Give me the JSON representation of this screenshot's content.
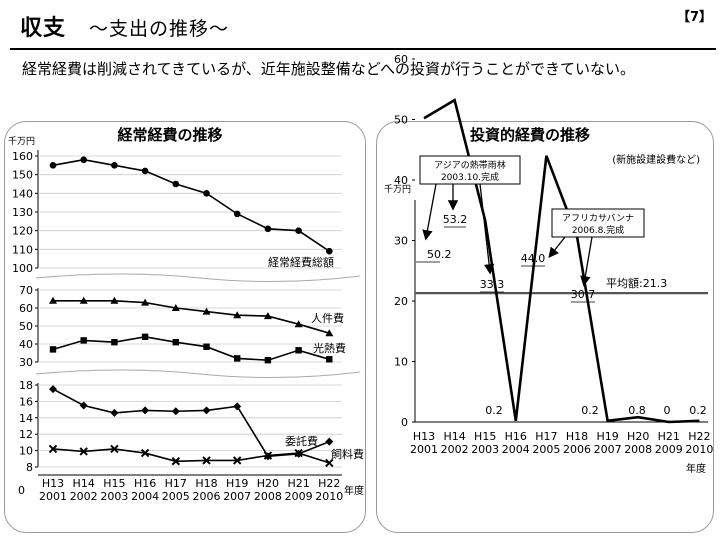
{
  "header": {
    "title_main": "収支",
    "title_sub": "～支出の推移～",
    "page_number": "【7】",
    "summary": "経常経費は削減されてきているが、近年施設整備などへの投資が行うことができていない。"
  },
  "chart_data": [
    {
      "type": "line",
      "title": "経常経費の推移",
      "ylabel": "千万円",
      "xlabel": "年度",
      "categories": [
        "H13",
        "H14",
        "H15",
        "H16",
        "H17",
        "H18",
        "H19",
        "H20",
        "H21",
        "H22"
      ],
      "category_years": [
        "2001",
        "2002",
        "2003",
        "2004",
        "2005",
        "2006",
        "2007",
        "2008",
        "2009",
        "2010"
      ],
      "panels": [
        {
          "ylim": [
            100,
            160
          ],
          "yticks": [
            100,
            110,
            120,
            130,
            140,
            150,
            160
          ],
          "series": [
            {
              "name": "経常経費総額",
              "marker": "circle",
              "values": [
                155,
                158,
                155,
                152,
                145,
                140,
                129,
                121,
                120,
                109
              ]
            }
          ]
        },
        {
          "ylim": [
            30,
            70
          ],
          "yticks": [
            30,
            40,
            50,
            60,
            70
          ],
          "series": [
            {
              "name": "人件費",
              "marker": "triangle",
              "values": [
                64,
                64,
                64,
                63,
                60,
                58,
                56,
                55.5,
                51,
                46
              ]
            },
            {
              "name": "光熱費",
              "marker": "square",
              "values": [
                37,
                42,
                41,
                44,
                41,
                38.5,
                32,
                31,
                36.5,
                31.5
              ]
            }
          ]
        },
        {
          "ylim": [
            8,
            18
          ],
          "yticks": [
            8,
            10,
            12,
            14,
            16,
            18
          ],
          "extra_tick": "0",
          "series": [
            {
              "name": "委託費",
              "marker": "diamond",
              "values": [
                17.5,
                15.5,
                14.6,
                14.9,
                14.8,
                14.9,
                15.4,
                9.3,
                9.6,
                11.1
              ]
            },
            {
              "name": "飼料費",
              "marker": "cross",
              "values": [
                10.2,
                9.9,
                10.2,
                9.7,
                8.7,
                8.8,
                8.8,
                9.4,
                9.7,
                8.5
              ]
            }
          ]
        }
      ]
    },
    {
      "type": "line",
      "title": "投資的経費の推移",
      "subtitle": "(新施設建設費など)",
      "ylabel": "千万円",
      "xlabel": "年度",
      "categories": [
        "H13",
        "H14",
        "H15",
        "H16",
        "H17",
        "H18",
        "H19",
        "H20",
        "H21",
        "H22"
      ],
      "category_years": [
        "2001",
        "2002",
        "2003",
        "2004",
        "2005",
        "2006",
        "2007",
        "2008",
        "2009",
        "2010"
      ],
      "ylim": [
        0,
        60
      ],
      "yticks": [
        0,
        10,
        20,
        30,
        40,
        50,
        60
      ],
      "values": [
        50.2,
        53.2,
        33.3,
        0.2,
        44.0,
        30.7,
        0.2,
        0.8,
        0,
        0.2
      ],
      "data_labels": [
        "50.2",
        "53.2",
        "33.3",
        "0.2",
        "44.0",
        "30.7",
        "0.2",
        "0.8",
        "0",
        "0.2"
      ],
      "average": {
        "label": "平均額:21.3",
        "value": 21.3
      },
      "annotations": [
        {
          "lines": [
            "アジアの熱帯雨林",
            "2003.10.完成"
          ]
        },
        {
          "lines": [
            "アフリカサバンナ",
            "2006.8.完成"
          ]
        }
      ]
    }
  ]
}
